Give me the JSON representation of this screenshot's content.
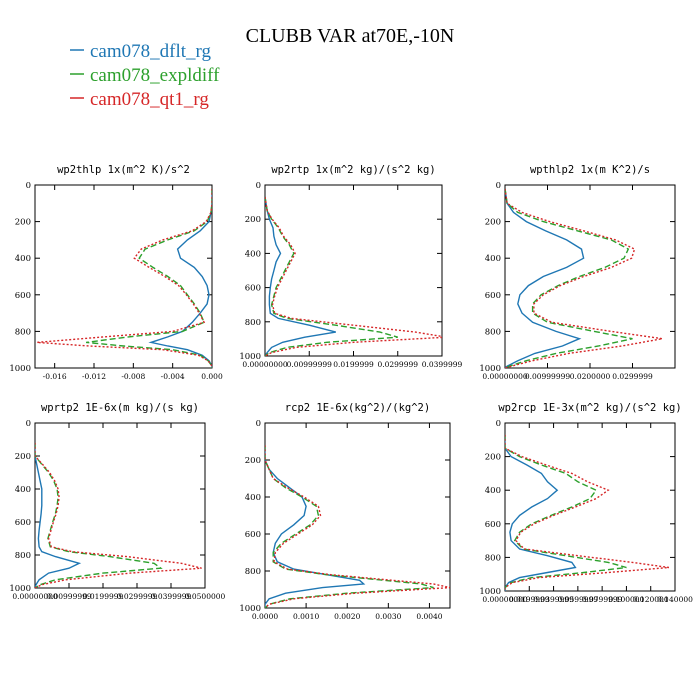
{
  "chart_data": {
    "type": "line",
    "title": "CLUBB VAR at70E,-10N",
    "ylabel": "",
    "series_styles": [
      {
        "name": "cam078_dflt_rg",
        "color": "#1f77b4",
        "dash": "solid"
      },
      {
        "name": "cam078_expldiff",
        "color": "#2ca02c",
        "dash": "dashed"
      },
      {
        "name": "cam078_qt1_rg",
        "color": "#d62728",
        "dash": "dotted"
      }
    ],
    "panels": [
      {
        "title": "wp2thlp  1x(m^2 K)/s^2",
        "xlim": [
          -0.018,
          0.0
        ],
        "ylim": [
          1000,
          0
        ],
        "xticks": [
          -0.016,
          -0.012,
          -0.008,
          -0.004,
          0.0
        ],
        "xtick_labels": [
          "-0.016",
          "-0.012",
          "-0.008",
          "-0.004",
          "0.000"
        ],
        "yticks": [
          0,
          200,
          400,
          600,
          800,
          1000
        ],
        "levels": [
          100,
          150,
          200,
          250,
          300,
          350,
          400,
          450,
          500,
          550,
          600,
          650,
          700,
          750,
          800,
          830,
          860,
          880,
          900,
          930,
          960,
          990
        ],
        "series": [
          {
            "name": "cam078_dflt_rg",
            "values": [
              0,
              -0.0001,
              -0.0003,
              -0.0012,
              -0.0025,
              -0.0035,
              -0.0032,
              -0.0018,
              -0.001,
              -0.0005,
              -0.0003,
              -0.0005,
              -0.0012,
              -0.002,
              -0.003,
              -0.0045,
              -0.0062,
              -0.0045,
              -0.0025,
              -0.001,
              -0.0003,
              0
            ]
          },
          {
            "name": "cam078_expldiff",
            "values": [
              0,
              -0.0001,
              -0.0005,
              -0.0018,
              -0.0045,
              -0.0068,
              -0.0074,
              -0.006,
              -0.0045,
              -0.0032,
              -0.0025,
              -0.0018,
              -0.0012,
              -0.0008,
              -0.003,
              -0.0085,
              -0.0128,
              -0.009,
              -0.004,
              -0.0012,
              -0.0004,
              0
            ]
          },
          {
            "name": "cam078_qt1_rg",
            "values": [
              0,
              -0.0001,
              -0.0006,
              -0.002,
              -0.005,
              -0.0072,
              -0.0079,
              -0.0064,
              -0.0048,
              -0.0034,
              -0.0026,
              -0.0019,
              -0.0013,
              -0.0008,
              -0.004,
              -0.011,
              -0.0178,
              -0.0125,
              -0.005,
              -0.0014,
              -0.0004,
              0
            ]
          }
        ]
      },
      {
        "title": "wp2rtp  1x(m^2 kg)/(s^2 kg)",
        "xlim": [
          0.0,
          0.04
        ],
        "ylim": [
          1000,
          0
        ],
        "xticks": [
          0.0,
          0.00999999,
          0.0199999,
          0.0299999,
          0.0399999
        ],
        "xtick_labels": [
          "0.00000000",
          "0.00999999",
          "0.0199999",
          "0.0299999",
          "0.0399999"
        ],
        "yticks": [
          0,
          200,
          400,
          600,
          800,
          1000
        ],
        "levels": [
          150,
          200,
          250,
          300,
          350,
          400,
          450,
          500,
          550,
          600,
          650,
          700,
          750,
          780,
          820,
          860,
          890,
          920,
          950,
          980
        ],
        "series": [
          {
            "name": "cam078_dflt_rg",
            "values": [
              0.0005,
              0.001,
              0.0018,
              0.002,
              0.0025,
              0.0035,
              0.0025,
              0.002,
              0.0015,
              0.0012,
              0.001,
              0.001,
              0.0012,
              0.003,
              0.01,
              0.016,
              0.009,
              0.004,
              0.0015,
              0.0005
            ]
          },
          {
            "name": "cam078_expldiff",
            "values": [
              0.0005,
              0.0015,
              0.003,
              0.004,
              0.0055,
              0.0065,
              0.0055,
              0.0045,
              0.0035,
              0.0025,
              0.002,
              0.0015,
              0.002,
              0.005,
              0.016,
              0.026,
              0.03,
              0.014,
              0.005,
              0.001
            ]
          },
          {
            "name": "cam078_qt1_rg",
            "values": [
              0.0005,
              0.0016,
              0.0032,
              0.0042,
              0.0058,
              0.0068,
              0.0058,
              0.0048,
              0.0038,
              0.0028,
              0.0022,
              0.0017,
              0.0022,
              0.006,
              0.02,
              0.034,
              0.041,
              0.02,
              0.007,
              0.0015
            ]
          }
        ]
      },
      {
        "title": "wpthlp2  1x(m K^2)/s",
        "xlim": [
          0.0,
          0.04
        ],
        "ylim": [
          1000,
          0
        ],
        "xticks": [
          0.0,
          0.00999999,
          0.0199999,
          0.0299999
        ],
        "xtick_labels": [
          "0.00000000",
          "0.00999999",
          "0.0200000",
          "0.0299999"
        ],
        "yticks": [
          0,
          200,
          400,
          600,
          800,
          1000
        ],
        "levels": [
          100,
          150,
          200,
          250,
          300,
          350,
          400,
          450,
          500,
          550,
          600,
          650,
          700,
          750,
          800,
          840,
          880,
          920,
          960,
          990
        ],
        "series": [
          {
            "name": "cam078_dflt_rg",
            "values": [
              0.0005,
              0.002,
              0.005,
              0.0095,
              0.0145,
              0.018,
              0.0185,
              0.0145,
              0.009,
              0.0055,
              0.0035,
              0.003,
              0.004,
              0.0065,
              0.012,
              0.0175,
              0.0135,
              0.007,
              0.003,
              0.0005
            ]
          },
          {
            "name": "cam078_expldiff",
            "values": [
              0.0005,
              0.003,
              0.009,
              0.017,
              0.025,
              0.029,
              0.028,
              0.0235,
              0.0175,
              0.0125,
              0.0085,
              0.0065,
              0.0065,
              0.01,
              0.021,
              0.03,
              0.022,
              0.012,
              0.005,
              0.001
            ]
          },
          {
            "name": "cam078_qt1_rg",
            "values": [
              0.0005,
              0.004,
              0.0105,
              0.0185,
              0.026,
              0.0305,
              0.0298,
              0.025,
              0.0185,
              0.013,
              0.009,
              0.0068,
              0.0068,
              0.011,
              0.025,
              0.037,
              0.0275,
              0.015,
              0.0065,
              0.0015
            ]
          }
        ]
      },
      {
        "title": "wprtp2  1E-6x(m kg)/(s kg)",
        "xlim": [
          0.0,
          0.05
        ],
        "ylim": [
          1000,
          0
        ],
        "xticks": [
          0.0,
          0.01,
          0.02,
          0.03,
          0.04,
          0.05
        ],
        "xtick_labels": [
          "0.00000000",
          "0.00999999",
          "0.0199999",
          "0.0299999",
          "0.0399999",
          "0.0500000"
        ],
        "yticks": [
          0,
          200,
          400,
          600,
          800,
          1000
        ],
        "levels": [
          200,
          250,
          300,
          350,
          400,
          450,
          500,
          550,
          600,
          650,
          700,
          750,
          780,
          810,
          850,
          880,
          910,
          950,
          980,
          1000
        ],
        "series": [
          {
            "name": "cam078_dflt_rg",
            "values": [
              0.0,
              0.0005,
              0.001,
              0.0015,
              0.002,
              0.002,
              0.002,
              0.0018,
              0.0015,
              0.0012,
              0.001,
              0.0012,
              0.002,
              0.006,
              0.013,
              0.01,
              0.004,
              0.0012,
              0.0003,
              0.0
            ]
          },
          {
            "name": "cam078_expldiff",
            "values": [
              0.0,
              0.002,
              0.004,
              0.0055,
              0.0065,
              0.0068,
              0.0065,
              0.006,
              0.0052,
              0.0045,
              0.0038,
              0.0045,
              0.01,
              0.022,
              0.035,
              0.037,
              0.02,
              0.006,
              0.0015,
              0.0
            ]
          },
          {
            "name": "cam078_qt1_rg",
            "values": [
              0.0,
              0.0022,
              0.0043,
              0.0058,
              0.0068,
              0.0071,
              0.0068,
              0.0062,
              0.0054,
              0.0047,
              0.004,
              0.0048,
              0.011,
              0.027,
              0.043,
              0.049,
              0.028,
              0.009,
              0.002,
              0.0
            ]
          }
        ]
      },
      {
        "title": "rcp2  1E-6x(kg^2)/(kg^2)",
        "xlim": [
          0.0,
          0.0045
        ],
        "ylim": [
          1000,
          0
        ],
        "xticks": [
          0.0,
          0.001,
          0.002,
          0.003,
          0.004
        ],
        "xtick_labels": [
          "0.0000",
          "0.0010",
          "0.0020",
          "0.0030",
          "0.0040"
        ],
        "yticks": [
          0,
          200,
          400,
          600,
          800,
          1000
        ],
        "levels": [
          200,
          250,
          300,
          350,
          400,
          450,
          500,
          550,
          600,
          650,
          700,
          750,
          790,
          820,
          850,
          870,
          890,
          920,
          950,
          980
        ],
        "series": [
          {
            "name": "cam078_dflt_rg",
            "values": [
              0.0,
              0.0001,
              0.0003,
              0.0006,
              0.0009,
              0.001,
              0.00095,
              0.0007,
              0.0004,
              0.00025,
              0.0002,
              0.0003,
              0.0007,
              0.0015,
              0.0023,
              0.0024,
              0.0014,
              0.0005,
              0.0001,
              0.0
            ]
          },
          {
            "name": "cam078_expldiff",
            "values": [
              0.0,
              0.0001,
              0.0002,
              0.0005,
              0.0009,
              0.00125,
              0.0013,
              0.0011,
              0.00075,
              0.0004,
              0.0002,
              0.0002,
              0.0005,
              0.0015,
              0.0029,
              0.0038,
              0.0041,
              0.002,
              0.0006,
              0.0001
            ]
          },
          {
            "name": "cam078_qt1_rg",
            "values": [
              0.0,
              0.0001,
              0.0002,
              0.00055,
              0.00095,
              0.0013,
              0.00135,
              0.00115,
              0.0008,
              0.00045,
              0.00025,
              0.00022,
              0.00055,
              0.0016,
              0.0031,
              0.0041,
              0.0045,
              0.0022,
              0.0007,
              0.0001
            ]
          }
        ]
      },
      {
        "title": "wp2rcp  1E-3x(m^2 kg)/(s^2 kg)",
        "xlim": [
          0.0,
          0.14
        ],
        "ylim": [
          1000,
          0
        ],
        "xticks": [
          0.0,
          0.02,
          0.04,
          0.06,
          0.08,
          0.1,
          0.12,
          0.14
        ],
        "xtick_labels": [
          "0.00000000",
          "0.0199999",
          "0.0399999",
          "0.0599999",
          "0.0799999",
          "0.100000",
          "0.120000",
          "0.140000"
        ],
        "yticks": [
          0,
          200,
          400,
          600,
          800,
          1000
        ],
        "levels": [
          150,
          200,
          250,
          300,
          350,
          400,
          450,
          500,
          550,
          600,
          650,
          700,
          750,
          790,
          830,
          860,
          890,
          920,
          950,
          980
        ],
        "series": [
          {
            "name": "cam078_dflt_rg",
            "values": [
              0.0,
              0.005,
              0.018,
              0.03,
              0.035,
              0.043,
              0.035,
              0.022,
              0.012,
              0.006,
              0.004,
              0.005,
              0.012,
              0.035,
              0.055,
              0.058,
              0.035,
              0.012,
              0.003,
              0.0
            ]
          },
          {
            "name": "cam078_expldiff",
            "values": [
              0.0,
              0.012,
              0.03,
              0.05,
              0.06,
              0.075,
              0.07,
              0.055,
              0.038,
              0.022,
              0.012,
              0.008,
              0.015,
              0.05,
              0.085,
              0.1,
              0.065,
              0.022,
              0.005,
              0.0
            ]
          },
          {
            "name": "cam078_qt1_rg",
            "values": [
              0.0,
              0.014,
              0.034,
              0.055,
              0.068,
              0.085,
              0.075,
              0.058,
              0.04,
              0.024,
              0.013,
              0.009,
              0.016,
              0.06,
              0.105,
              0.135,
              0.085,
              0.028,
              0.006,
              0.0
            ]
          }
        ]
      }
    ]
  }
}
